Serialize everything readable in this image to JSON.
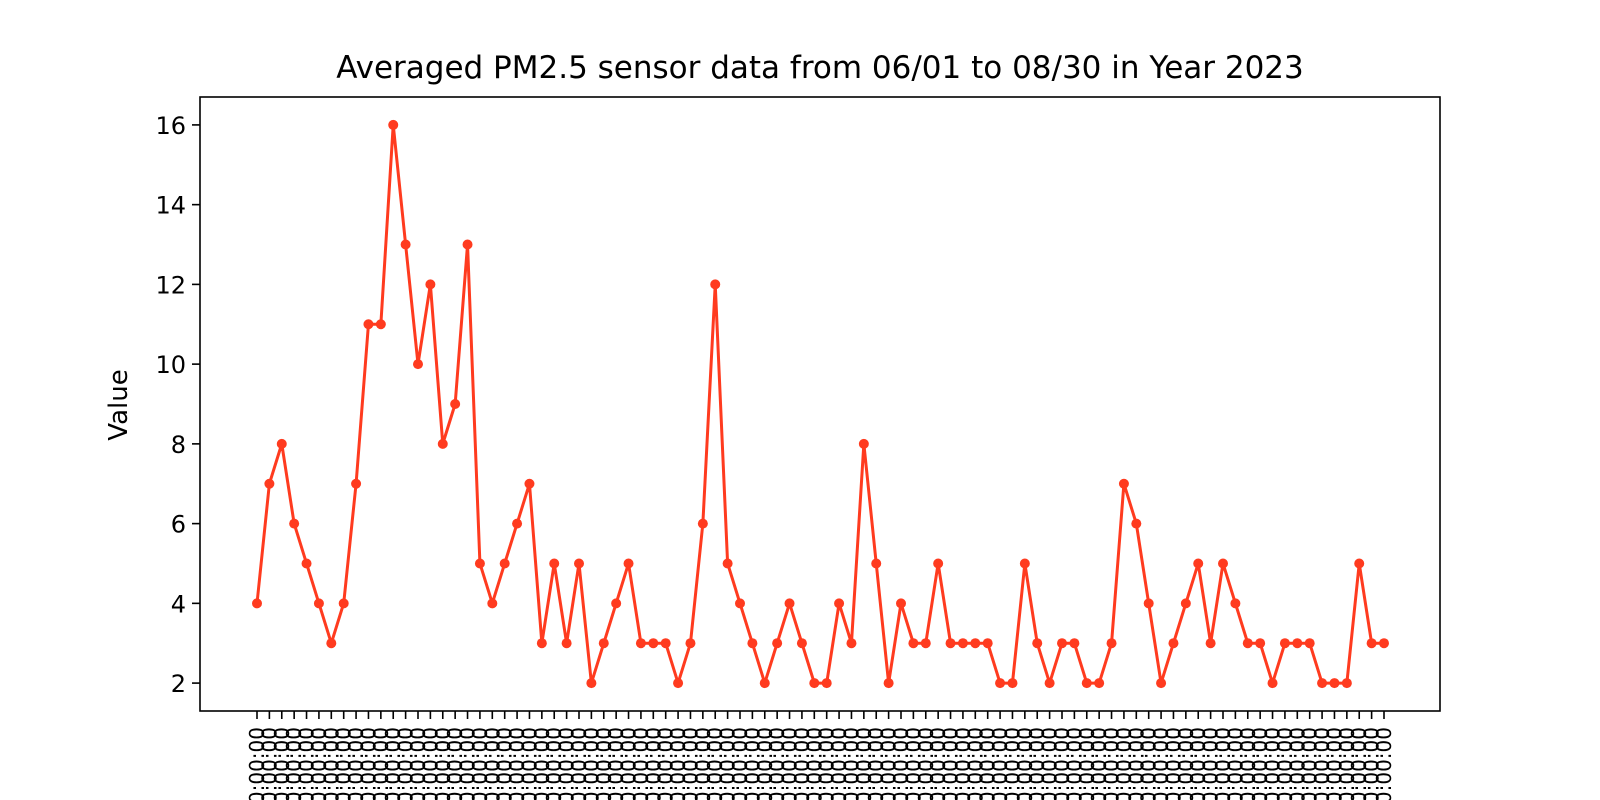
{
  "chart_data": {
    "type": "line",
    "title": "Averaged PM2.5 sensor data from 06/01 to 08/30 in Year 2023",
    "xlabel": "",
    "ylabel": "Value",
    "x_tick_label": "0:00:00",
    "y_ticks": [
      2,
      4,
      6,
      8,
      10,
      12,
      14,
      16
    ],
    "ylim": [
      1.3,
      16.7
    ],
    "grid": false,
    "legend": "none",
    "series": [
      {
        "color": "#ff3b1f",
        "marker": "circle",
        "values": [
          4,
          7,
          8,
          6,
          5,
          4,
          3,
          4,
          7,
          11,
          11,
          16,
          13,
          10,
          12,
          8,
          9,
          13,
          5,
          4,
          5,
          6,
          7,
          3,
          5,
          3,
          5,
          2,
          3,
          4,
          5,
          3,
          3,
          3,
          2,
          3,
          6,
          12,
          5,
          4,
          3,
          2,
          3,
          4,
          3,
          2,
          2,
          4,
          3,
          8,
          5,
          2,
          4,
          3,
          3,
          5,
          3,
          3,
          3,
          3,
          2,
          2,
          5,
          3,
          2,
          3,
          3,
          2,
          2,
          3,
          7,
          6,
          4,
          2,
          3,
          4,
          5,
          3,
          5,
          4,
          3,
          3,
          2,
          3,
          3,
          3,
          2,
          2,
          2,
          5,
          3,
          3
        ]
      }
    ]
  }
}
